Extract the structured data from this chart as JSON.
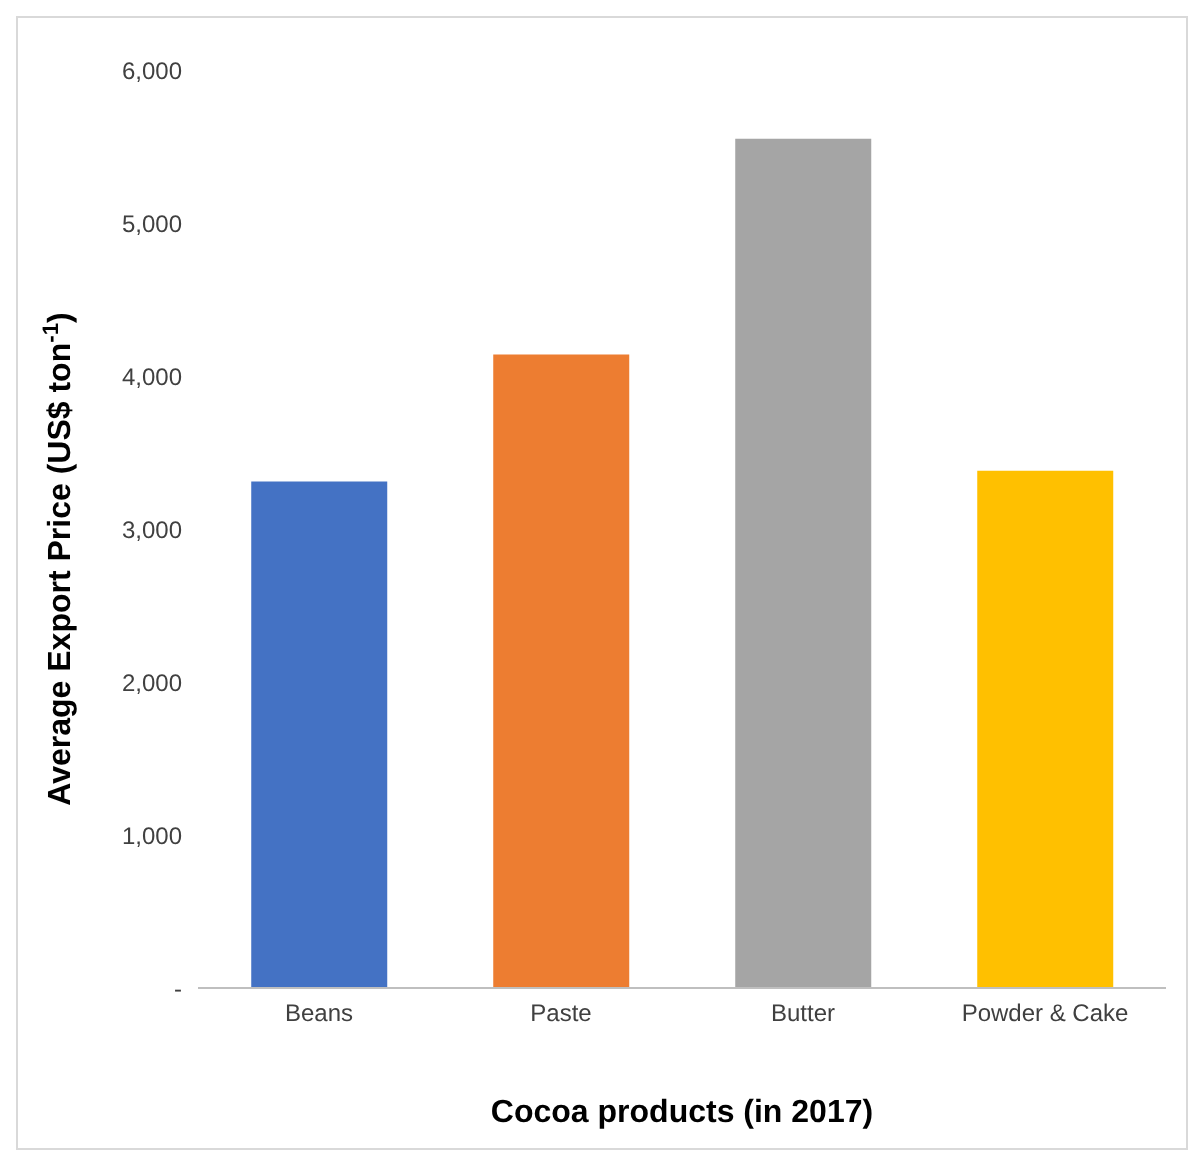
{
  "chart_data": {
    "type": "bar",
    "xlabel": "Cocoa products (in 2017)",
    "ylabel": "Average Export Price (US$ ton$^{-1}$)",
    "categories": [
      "Beans",
      "Paste",
      "Butter",
      "Powder & Cake"
    ],
    "values": [
      3310,
      4140,
      5550,
      3380
    ],
    "colors": [
      "#4472c4",
      "#ed7d31",
      "#a5a5a5",
      "#ffc000"
    ],
    "ylim": [
      0,
      6000
    ],
    "yticks": [
      {
        "value": 0,
        "label": "-"
      },
      {
        "value": 1000,
        "label": "1,000"
      },
      {
        "value": 2000,
        "label": "2,000"
      },
      {
        "value": 3000,
        "label": "3,000"
      },
      {
        "value": 4000,
        "label": "4,000"
      },
      {
        "value": 5000,
        "label": "5,000"
      },
      {
        "value": 6000,
        "label": "6,000"
      }
    ],
    "grid": false,
    "legend": false
  }
}
